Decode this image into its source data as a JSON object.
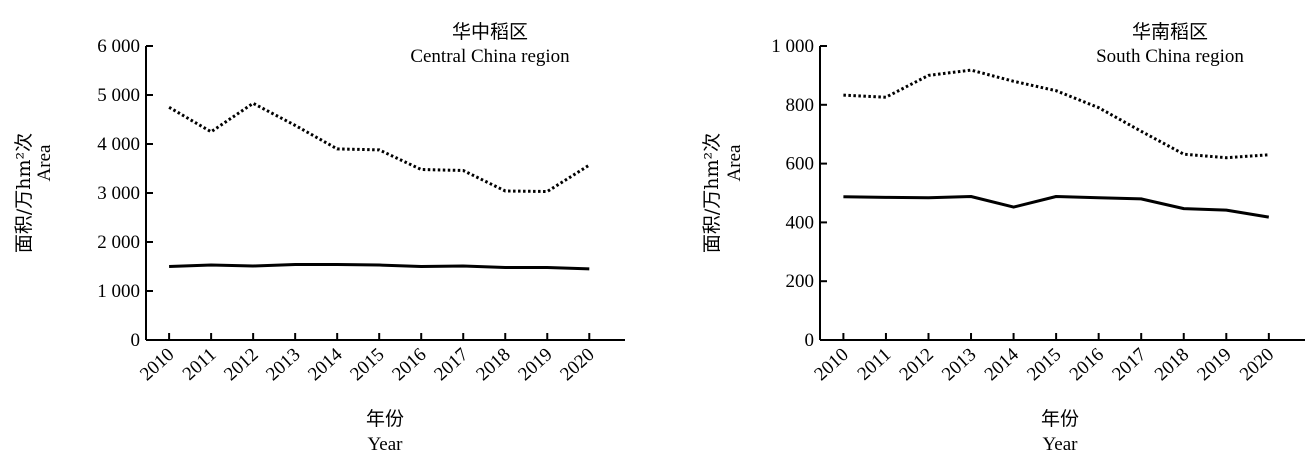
{
  "chart_data": [
    {
      "type": "line",
      "title": "华中稻区",
      "subtitle": "Central China region",
      "xlabel": "年份",
      "xlabel_en": "Year",
      "ylabel": "面积/万hm²次",
      "ylabel_en": "Area",
      "x": [
        "2010",
        "2011",
        "2012",
        "2013",
        "2014",
        "2015",
        "2016",
        "2017",
        "2018",
        "2019",
        "2020"
      ],
      "ylim": [
        0,
        6000
      ],
      "yticks": [
        "0",
        "1 000",
        "2 000",
        "3 000",
        "4 000",
        "5 000",
        "6 000"
      ],
      "grid": false,
      "series": [
        {
          "style": "dotted",
          "values": [
            4750,
            4250,
            4830,
            4380,
            3900,
            3880,
            3480,
            3460,
            3040,
            3030,
            3570
          ]
        },
        {
          "style": "solid",
          "values": [
            1500,
            1530,
            1510,
            1540,
            1540,
            1530,
            1500,
            1510,
            1480,
            1480,
            1450
          ]
        }
      ]
    },
    {
      "type": "line",
      "title": "华南稻区",
      "subtitle": "South China region",
      "xlabel": "年份",
      "xlabel_en": "Year",
      "ylabel": "面积/万hm²次",
      "ylabel_en": "Area",
      "x": [
        "2010",
        "2011",
        "2012",
        "2013",
        "2014",
        "2015",
        "2016",
        "2017",
        "2018",
        "2019",
        "2020"
      ],
      "ylim": [
        0,
        1000
      ],
      "yticks": [
        "0",
        "200",
        "400",
        "600",
        "800",
        "1 000"
      ],
      "grid": false,
      "series": [
        {
          "style": "dotted",
          "values": [
            833,
            826,
            900,
            918,
            880,
            848,
            790,
            710,
            632,
            620,
            630
          ]
        },
        {
          "style": "solid",
          "values": [
            487,
            485,
            484,
            488,
            452,
            488,
            484,
            480,
            447,
            442,
            418
          ]
        }
      ]
    }
  ]
}
